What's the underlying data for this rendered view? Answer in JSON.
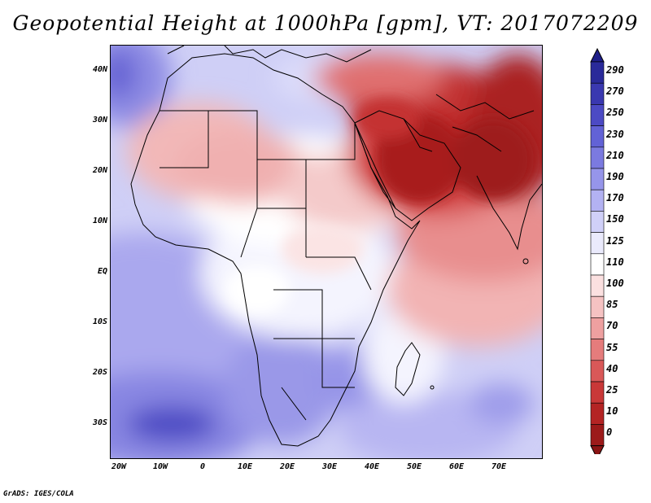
{
  "title": "Geopotential Height at 1000hPa [gpm], VT: 2017072209",
  "credit": "GrADS: IGES/COLA",
  "lat_labels": [
    "40N",
    "30N",
    "20N",
    "10N",
    "EQ",
    "10S",
    "20S",
    "30S"
  ],
  "lon_labels": [
    "20W",
    "10W",
    "0",
    "10E",
    "20E",
    "30E",
    "40E",
    "50E",
    "60E",
    "70E"
  ],
  "colorbar": {
    "labels": [
      "290",
      "270",
      "250",
      "230",
      "210",
      "190",
      "170",
      "150",
      "125",
      "110",
      "100",
      "85",
      "70",
      "55",
      "40",
      "25",
      "10",
      "0"
    ],
    "colors": [
      "#2a2a9a",
      "#3a38b0",
      "#4c4ac4",
      "#6262d6",
      "#7b7ae0",
      "#9695ea",
      "#b3b2f2",
      "#d0d0f8",
      "#eaeafc",
      "#ffffff",
      "#fbe0e0",
      "#f5c2c2",
      "#eea0a0",
      "#e57c7c",
      "#d95858",
      "#c93838",
      "#b42424",
      "#9c1a1a"
    ]
  },
  "chart_data": {
    "type": "heatmap",
    "title": "Geopotential Height at 1000hPa [gpm], VT: 2017072209",
    "variable": "Geopotential Height at 1000hPa",
    "units": "gpm",
    "valid_time": "2017072209",
    "x_range": [
      -22,
      80
    ],
    "y_range": [
      -37,
      45
    ],
    "x_ticks": [
      "20W",
      "10W",
      "0",
      "10E",
      "20E",
      "30E",
      "40E",
      "50E",
      "60E",
      "70E"
    ],
    "y_ticks": [
      "40N",
      "30N",
      "20N",
      "10N",
      "EQ",
      "10S",
      "20S",
      "30S"
    ],
    "contour_levels": [
      0,
      10,
      25,
      40,
      55,
      70,
      85,
      100,
      110,
      125,
      150,
      170,
      190,
      210,
      230,
      250,
      270,
      290
    ]
  }
}
